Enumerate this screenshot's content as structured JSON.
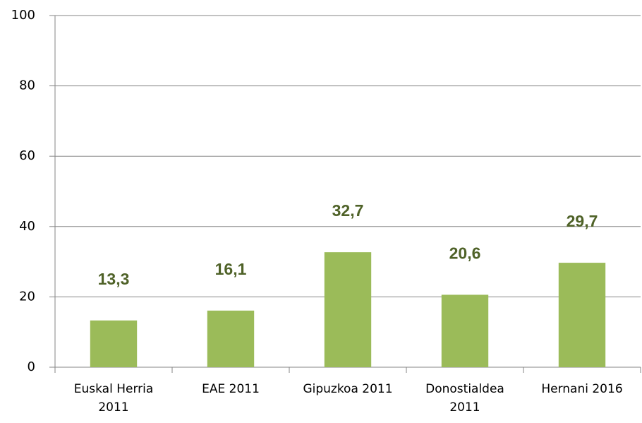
{
  "chart_data": {
    "type": "bar",
    "categories": [
      "Euskal Herria 2011",
      "EAE 2011",
      "Gipuzkoa 2011",
      "Donostialdea 2011",
      "Hernani 2016"
    ],
    "values": [
      13.3,
      16.1,
      32.7,
      20.6,
      29.7
    ],
    "value_labels": [
      "13,3",
      "16,1",
      "32,7",
      "20,6",
      "29,7"
    ],
    "color": "#9bbb59",
    "label_color": "#4f6228",
    "ylim": [
      0,
      100
    ],
    "yticks": [
      0,
      20,
      40,
      60,
      80,
      100
    ],
    "grid": true
  }
}
